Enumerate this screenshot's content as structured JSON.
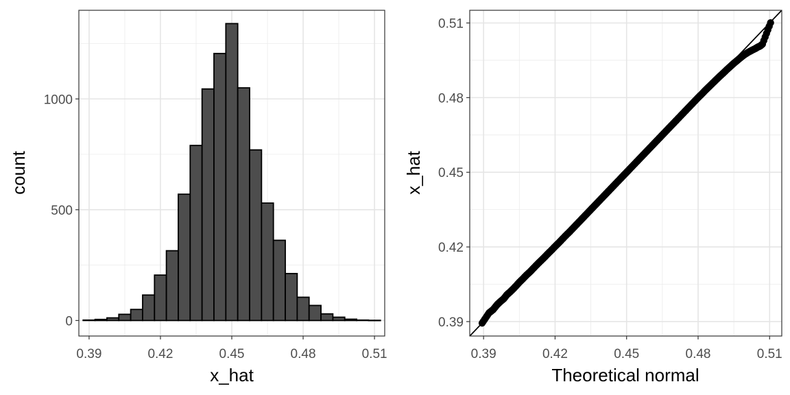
{
  "chart_data": [
    {
      "type": "bar",
      "subtype": "histogram",
      "title": "",
      "xlabel": "x_hat",
      "ylabel": "count",
      "xlim": [
        0.3857,
        0.5143
      ],
      "ylim": [
        -70,
        1400
      ],
      "x_ticks": [
        0.39,
        0.42,
        0.45,
        0.48,
        0.51
      ],
      "x_tick_labels": [
        "0.39",
        "0.42",
        "0.45",
        "0.48",
        "0.51"
      ],
      "y_ticks": [
        0,
        500,
        1000
      ],
      "y_tick_labels": [
        "0",
        "500",
        "1000"
      ],
      "bin_width": 0.005,
      "bin_left_edges": [
        0.3875,
        0.3925,
        0.3975,
        0.4025,
        0.4075,
        0.4125,
        0.4175,
        0.4225,
        0.4275,
        0.4325,
        0.4375,
        0.4425,
        0.4475,
        0.4525,
        0.4575,
        0.4625,
        0.4675,
        0.4725,
        0.4775,
        0.4825,
        0.4875,
        0.4925,
        0.4975,
        0.5025,
        0.5075
      ],
      "counts": [
        2,
        5,
        12,
        28,
        50,
        115,
        205,
        315,
        570,
        790,
        1045,
        1205,
        1340,
        1050,
        770,
        530,
        362,
        212,
        105,
        68,
        30,
        15,
        6,
        2,
        1
      ],
      "grid": true,
      "fill_color": "#4d4d4d",
      "edge_color": "#000000"
    },
    {
      "type": "scatter",
      "subtype": "qq-plot",
      "title": "",
      "xlabel": "Theoretical normal",
      "ylabel": "x_hat",
      "xlim": [
        0.3842,
        0.5151
      ],
      "ylim": [
        0.3842,
        0.5151
      ],
      "x_ticks": [
        0.39,
        0.42,
        0.45,
        0.48,
        0.51
      ],
      "x_tick_labels": [
        "0.39",
        "0.42",
        "0.45",
        "0.48",
        "0.51"
      ],
      "y_ticks": [
        0.39,
        0.42,
        0.45,
        0.48,
        0.51
      ],
      "y_tick_labels": [
        "0.39",
        "0.42",
        "0.45",
        "0.48",
        "0.51"
      ],
      "reference_line": {
        "slope": 1,
        "intercept": 0
      },
      "points": [
        [
          0.3894,
          0.3894
        ],
        [
          0.3923,
          0.3935
        ],
        [
          0.394,
          0.3948
        ],
        [
          0.3957,
          0.3968
        ],
        [
          0.397,
          0.398
        ],
        [
          0.3985,
          0.3992
        ],
        [
          0.3998,
          0.4008
        ],
        [
          0.401,
          0.4018
        ],
        [
          0.4023,
          0.403
        ],
        [
          0.4036,
          0.4043
        ],
        [
          0.405,
          0.4058
        ],
        [
          0.4065,
          0.4072
        ],
        [
          0.408,
          0.4087
        ],
        [
          0.4095,
          0.41
        ],
        [
          0.411,
          0.4115
        ],
        [
          0.4125,
          0.413
        ],
        [
          0.414,
          0.4144
        ],
        [
          0.4155,
          0.4158
        ],
        [
          0.417,
          0.4173
        ],
        [
          0.4185,
          0.4187
        ],
        [
          0.42,
          0.4202
        ],
        [
          0.4215,
          0.4216
        ],
        [
          0.423,
          0.4231
        ],
        [
          0.4245,
          0.4246
        ],
        [
          0.426,
          0.426
        ],
        [
          0.4275,
          0.4275
        ],
        [
          0.429,
          0.429
        ],
        [
          0.4305,
          0.4305
        ],
        [
          0.432,
          0.432
        ],
        [
          0.4335,
          0.4335
        ],
        [
          0.435,
          0.435
        ],
        [
          0.4365,
          0.4365
        ],
        [
          0.438,
          0.438
        ],
        [
          0.4395,
          0.4395
        ],
        [
          0.441,
          0.441
        ],
        [
          0.4425,
          0.4425
        ],
        [
          0.444,
          0.444
        ],
        [
          0.4455,
          0.4455
        ],
        [
          0.447,
          0.447
        ],
        [
          0.4485,
          0.4485
        ],
        [
          0.45,
          0.45
        ],
        [
          0.4515,
          0.4515
        ],
        [
          0.453,
          0.453
        ],
        [
          0.4545,
          0.4545
        ],
        [
          0.456,
          0.456
        ],
        [
          0.4575,
          0.4575
        ],
        [
          0.459,
          0.459
        ],
        [
          0.4605,
          0.4605
        ],
        [
          0.462,
          0.462
        ],
        [
          0.4635,
          0.4635
        ],
        [
          0.465,
          0.465
        ],
        [
          0.4665,
          0.4665
        ],
        [
          0.468,
          0.468
        ],
        [
          0.4695,
          0.4695
        ],
        [
          0.471,
          0.471
        ],
        [
          0.4725,
          0.4725
        ],
        [
          0.474,
          0.474
        ],
        [
          0.4755,
          0.4755
        ],
        [
          0.477,
          0.477
        ],
        [
          0.4785,
          0.4785
        ],
        [
          0.48,
          0.48
        ],
        [
          0.4815,
          0.4814
        ],
        [
          0.483,
          0.4829
        ],
        [
          0.4845,
          0.4843
        ],
        [
          0.486,
          0.4857
        ],
        [
          0.4875,
          0.4871
        ],
        [
          0.489,
          0.4885
        ],
        [
          0.4905,
          0.4898
        ],
        [
          0.492,
          0.4912
        ],
        [
          0.4935,
          0.4925
        ],
        [
          0.495,
          0.4938
        ],
        [
          0.4965,
          0.495
        ],
        [
          0.498,
          0.4962
        ],
        [
          0.4995,
          0.4973
        ],
        [
          0.501,
          0.4982
        ],
        [
          0.5025,
          0.499
        ],
        [
          0.504,
          0.4997
        ],
        [
          0.505,
          0.5003
        ],
        [
          0.506,
          0.5007
        ],
        [
          0.507,
          0.5015
        ],
        [
          0.5104,
          0.5101
        ]
      ],
      "grid": true,
      "point_color": "#000000"
    }
  ]
}
